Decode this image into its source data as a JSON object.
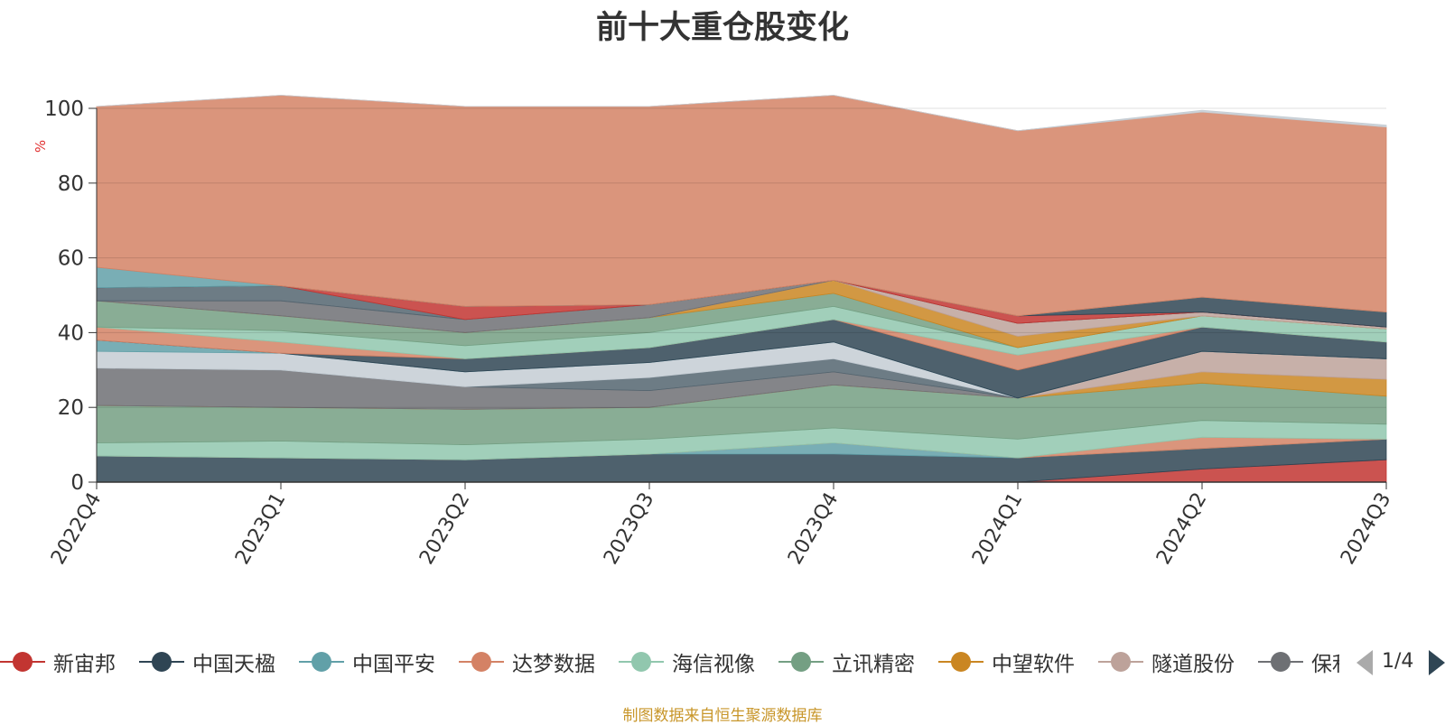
{
  "chart_data": {
    "type": "area",
    "stacked": true,
    "title": "前十大重仓股变化",
    "ylabel": "%",
    "ylim": [
      0,
      100
    ],
    "yticks": [
      0,
      20,
      40,
      60,
      80,
      100
    ],
    "grid": true,
    "x": [
      "2022Q4",
      "2023Q1",
      "2023Q2",
      "2023Q3",
      "2023Q4",
      "2024Q1",
      "2024Q2",
      "2024Q3"
    ],
    "series": [
      {
        "name": "新宙邦",
        "color": "#c23531",
        "values": [
          0,
          0,
          0,
          0,
          0,
          0,
          3.5,
          6
        ]
      },
      {
        "name": "中国天楹",
        "color": "#2f4554",
        "values": [
          7,
          6.5,
          6,
          7.5,
          7.5,
          6.5,
          5.5,
          5.5
        ]
      },
      {
        "name": "中国平安",
        "color": "#61a0a8",
        "values": [
          0,
          0,
          0,
          0,
          3,
          0,
          0,
          0
        ]
      },
      {
        "name": "达梦数据",
        "color": "#d48265",
        "values": [
          0,
          0,
          0,
          0,
          0,
          0,
          3,
          0
        ]
      },
      {
        "name": "海信视像",
        "color": "#91c7ae",
        "values": [
          3.5,
          4.5,
          4,
          4,
          4,
          5,
          4.5,
          4
        ]
      },
      {
        "name": "立讯精密",
        "color": "#749f83",
        "values": [
          10,
          9,
          9.5,
          8.5,
          11.5,
          11,
          10,
          7.5
        ]
      },
      {
        "name": "中望软件",
        "color": "#ca8622",
        "values": [
          0,
          0,
          0,
          0,
          0,
          0,
          3,
          4.5
        ]
      },
      {
        "name": "隧道股份",
        "color": "#bda29a",
        "values": [
          0,
          0,
          0,
          0,
          0,
          0,
          5.5,
          5.5
        ]
      },
      {
        "name": "保利发展",
        "color": "#6e7074",
        "values": [
          10,
          10,
          6,
          4.5,
          3.5,
          0,
          0,
          0
        ]
      },
      {
        "name": "",
        "color": "#546570",
        "values": [
          0,
          0,
          0,
          3.5,
          3.5,
          0,
          0,
          0
        ]
      },
      {
        "name": "",
        "color": "#c4ccd3",
        "values": [
          4.5,
          4.5,
          4,
          4,
          4.5,
          0,
          0,
          0
        ]
      },
      {
        "name": "",
        "color": "#61a0a8",
        "values": [
          3,
          0,
          0,
          0,
          0,
          0,
          0,
          0
        ]
      },
      {
        "name": "",
        "color": "#2f4554",
        "values": [
          0,
          0,
          3.5,
          4,
          6,
          7.5,
          6.5,
          4.5
        ]
      },
      {
        "name": "",
        "color": "#d48265",
        "values": [
          3.5,
          3,
          0,
          0,
          0,
          4,
          0,
          0
        ]
      },
      {
        "name": "",
        "color": "#91c7ae",
        "values": [
          0,
          3,
          3.5,
          4,
          3.5,
          2,
          3,
          3.5
        ]
      },
      {
        "name": "",
        "color": "#749f83",
        "values": [
          7,
          4,
          3.5,
          4,
          3.5,
          0,
          0,
          0
        ]
      },
      {
        "name": "",
        "color": "#ca8622",
        "values": [
          0,
          0,
          0,
          0,
          3.5,
          3,
          0,
          0
        ]
      },
      {
        "name": "",
        "color": "#bda29a",
        "values": [
          0,
          0,
          0,
          0,
          0,
          3.5,
          1,
          0.5
        ]
      },
      {
        "name": "",
        "color": "#6e7074",
        "values": [
          0,
          4,
          3.5,
          3.5,
          0,
          0,
          0,
          0
        ]
      },
      {
        "name": "",
        "color": "#546570",
        "values": [
          3.5,
          4,
          0,
          0,
          0,
          0,
          0,
          0
        ]
      },
      {
        "name": "",
        "color": "#c23531",
        "values": [
          0,
          0,
          3.5,
          0,
          0,
          2,
          0,
          0
        ]
      },
      {
        "name": "",
        "color": "#2f4554",
        "values": [
          0,
          0,
          0,
          0,
          0,
          0,
          4,
          4
        ]
      },
      {
        "name": "",
        "color": "#61a0a8",
        "values": [
          5.5,
          0,
          0,
          0,
          0,
          0,
          0,
          0
        ]
      },
      {
        "name": "",
        "color": "#d48265",
        "values": [
          43,
          51,
          53.5,
          53,
          49.5,
          49.5,
          49.5,
          49.5
        ]
      },
      {
        "name": "",
        "color": "#c4ccd3",
        "values": [
          0,
          0,
          0,
          0,
          0,
          0,
          0.5,
          0.5
        ]
      }
    ],
    "legend": [
      "新宙邦",
      "中国天楹",
      "中国平安",
      "达梦数据",
      "海信视像",
      "立讯精密",
      "中望软件",
      "隧道股份",
      "保利发展"
    ],
    "legend_position": "bottom",
    "legend_page": "1/4"
  },
  "footer": "制图数据来自恒生聚源数据库"
}
